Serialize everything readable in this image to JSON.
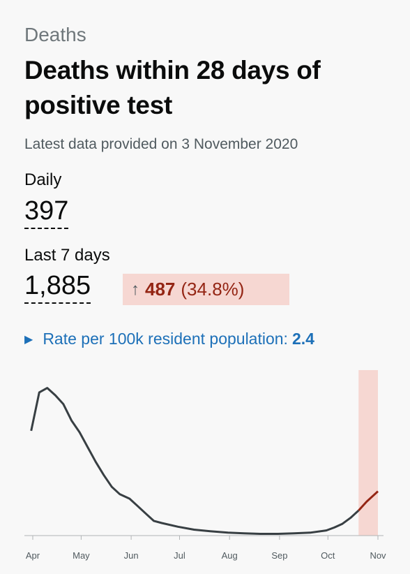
{
  "caption": "Deaths",
  "heading": "Deaths within 28 days of positive test",
  "updated": "Latest data provided on 3 November 2020",
  "daily": {
    "label": "Daily",
    "value": "397"
  },
  "last7": {
    "label": "Last 7 days",
    "value": "1,885"
  },
  "change": {
    "arrow": "↑",
    "value": "487",
    "percent": "(34.8%)"
  },
  "rate": {
    "label": "Rate per 100k resident population:",
    "value": "2.4"
  },
  "colors": {
    "line": "#383f43",
    "recent": "#942514",
    "recent_fill": "#f6d7d2",
    "link": "#1d70b8"
  },
  "chart_data": {
    "type": "line",
    "xlabels": [
      "Apr",
      "May",
      "Jun",
      "Jul",
      "Aug",
      "Sep",
      "Oct",
      "Nov"
    ],
    "x": [
      "2020-03-31",
      "2020-04-05",
      "2020-04-10",
      "2020-04-15",
      "2020-04-20",
      "2020-04-25",
      "2020-04-30",
      "2020-05-05",
      "2020-05-10",
      "2020-05-15",
      "2020-05-20",
      "2020-05-25",
      "2020-05-31",
      "2020-06-05",
      "2020-06-10",
      "2020-06-15",
      "2020-06-20",
      "2020-06-30",
      "2020-07-10",
      "2020-07-20",
      "2020-07-31",
      "2020-08-10",
      "2020-08-20",
      "2020-08-31",
      "2020-09-10",
      "2020-09-20",
      "2020-09-30",
      "2020-10-05",
      "2020-10-10",
      "2020-10-15",
      "2020-10-20",
      "2020-10-25",
      "2020-10-31",
      "2020-11-01"
    ],
    "y": [
      710,
      970,
      1000,
      950,
      890,
      780,
      700,
      600,
      500,
      410,
      330,
      280,
      250,
      200,
      150,
      100,
      85,
      60,
      40,
      30,
      20,
      15,
      12,
      12,
      15,
      20,
      35,
      55,
      80,
      120,
      170,
      230,
      290,
      300
    ],
    "recent_start": "2020-10-20",
    "ylim": [
      0,
      1050
    ],
    "grid": false
  }
}
